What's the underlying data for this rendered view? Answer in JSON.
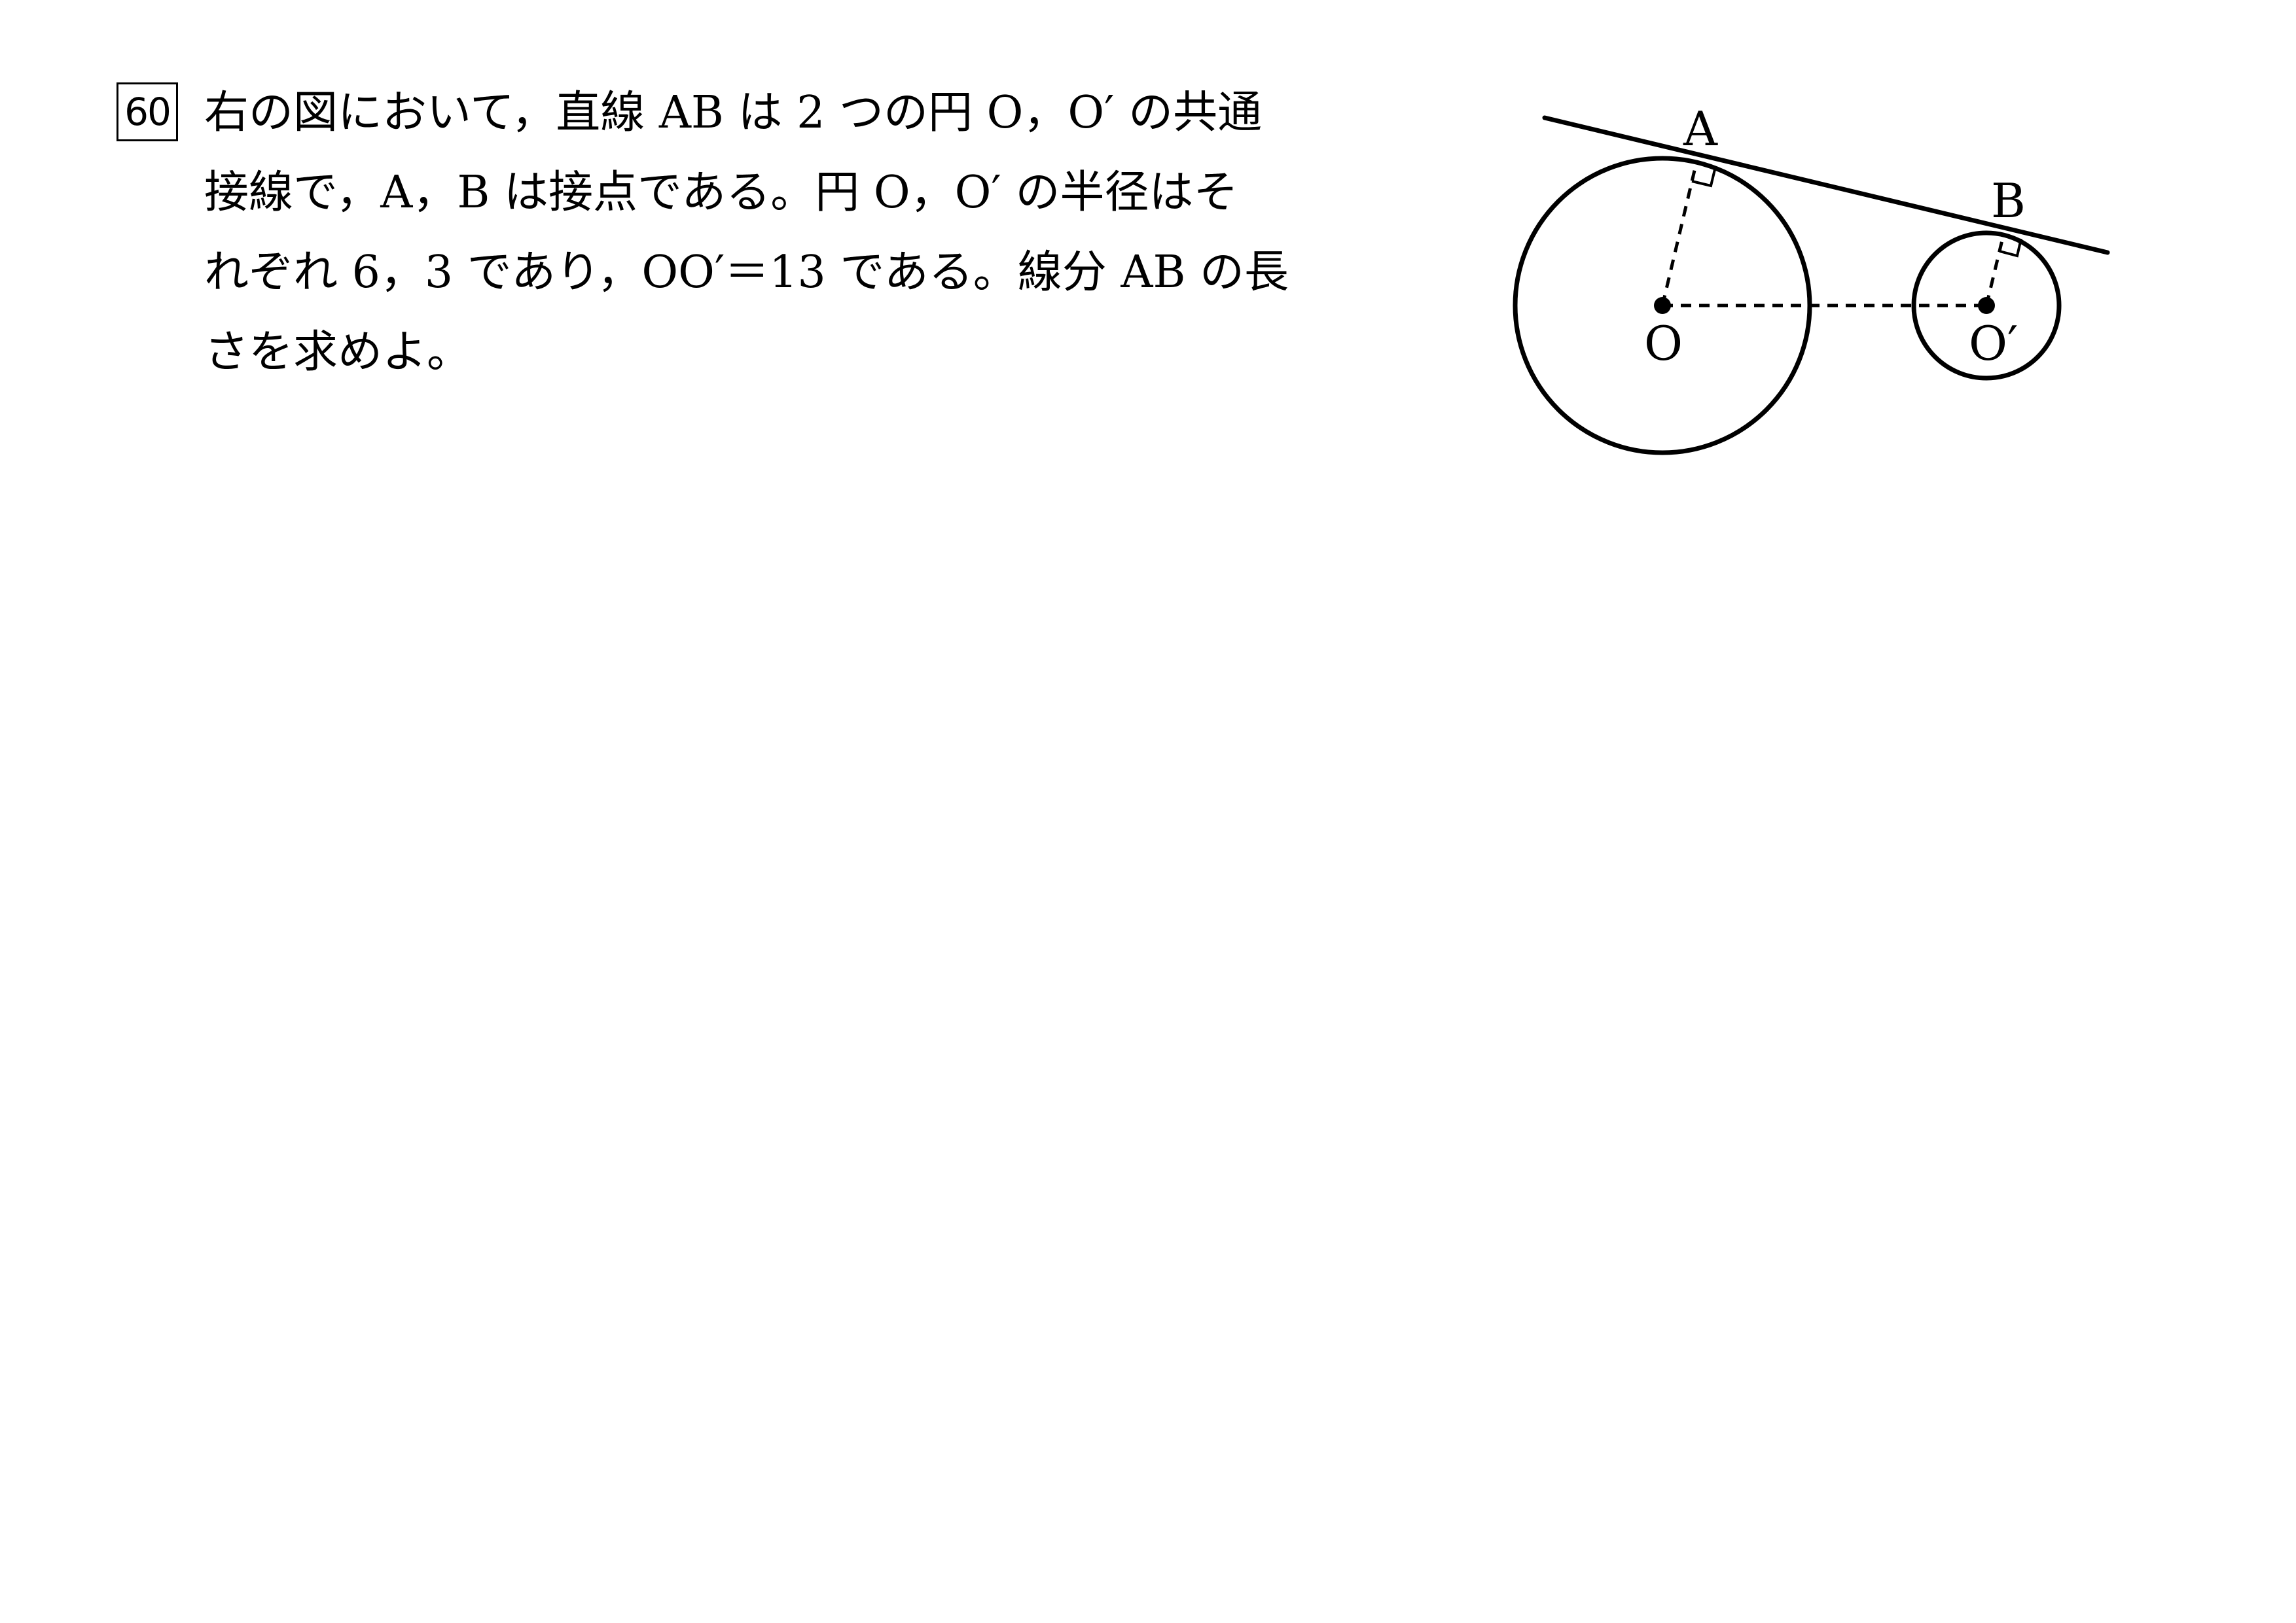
{
  "problem": {
    "number": "60",
    "lines": [
      "右の図において，直線 AB は 2 つの円 O，O′ の共通",
      "接線で，A，B は接点である。円 O，O′ の半径はそ",
      "れぞれ 6，3 であり，OO′＝13 である。線分 AB の長",
      "さを求めよ。"
    ]
  },
  "figure": {
    "labels": {
      "A": "A",
      "B": "B",
      "O": "O",
      "O_prime": "O′"
    }
  }
}
